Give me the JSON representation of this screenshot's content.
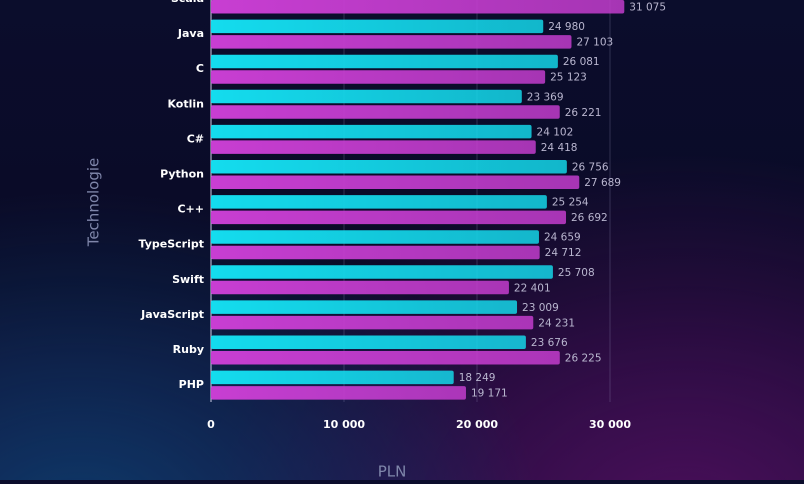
{
  "chart_data": {
    "type": "hbar",
    "x_label": "PLN",
    "y_label": "Technologie",
    "categories": [
      "Scala",
      "Java",
      "C",
      "Kotlin",
      "C#",
      "Python",
      "C++",
      "TypeScript",
      "Swift",
      "JavaScript",
      "Ruby",
      "PHP"
    ],
    "series": [
      {
        "color": "#14dcee",
        "values": [
          null,
          24980,
          26081,
          23369,
          24102,
          26756,
          25254,
          24659,
          25708,
          23009,
          23676,
          18249
        ],
        "value_labels": [
          null,
          "24 980",
          "26 081",
          "23 369",
          "24 102",
          "26 756",
          "25 254",
          "24 659",
          "25 708",
          "23 009",
          "23 676",
          "18 249"
        ]
      },
      {
        "color": "#c83ed2",
        "values": [
          31075,
          27103,
          25123,
          26221,
          24418,
          27689,
          26692,
          24712,
          22401,
          24231,
          26225,
          19171
        ],
        "value_labels": [
          "31 075",
          "27 103",
          "25 123",
          "26 221",
          "24 418",
          "27 689",
          "26 692",
          "24 712",
          "22 401",
          "24 231",
          "26 225",
          "19 171"
        ]
      }
    ],
    "xlim": [
      0,
      33000
    ],
    "xticks": [
      0,
      {
        "value": 10000,
        "label": "10 000"
      },
      {
        "value": 20000,
        "label": "20 000"
      },
      {
        "value": 30000,
        "label": "30 000"
      }
    ],
    "grid": true
  }
}
